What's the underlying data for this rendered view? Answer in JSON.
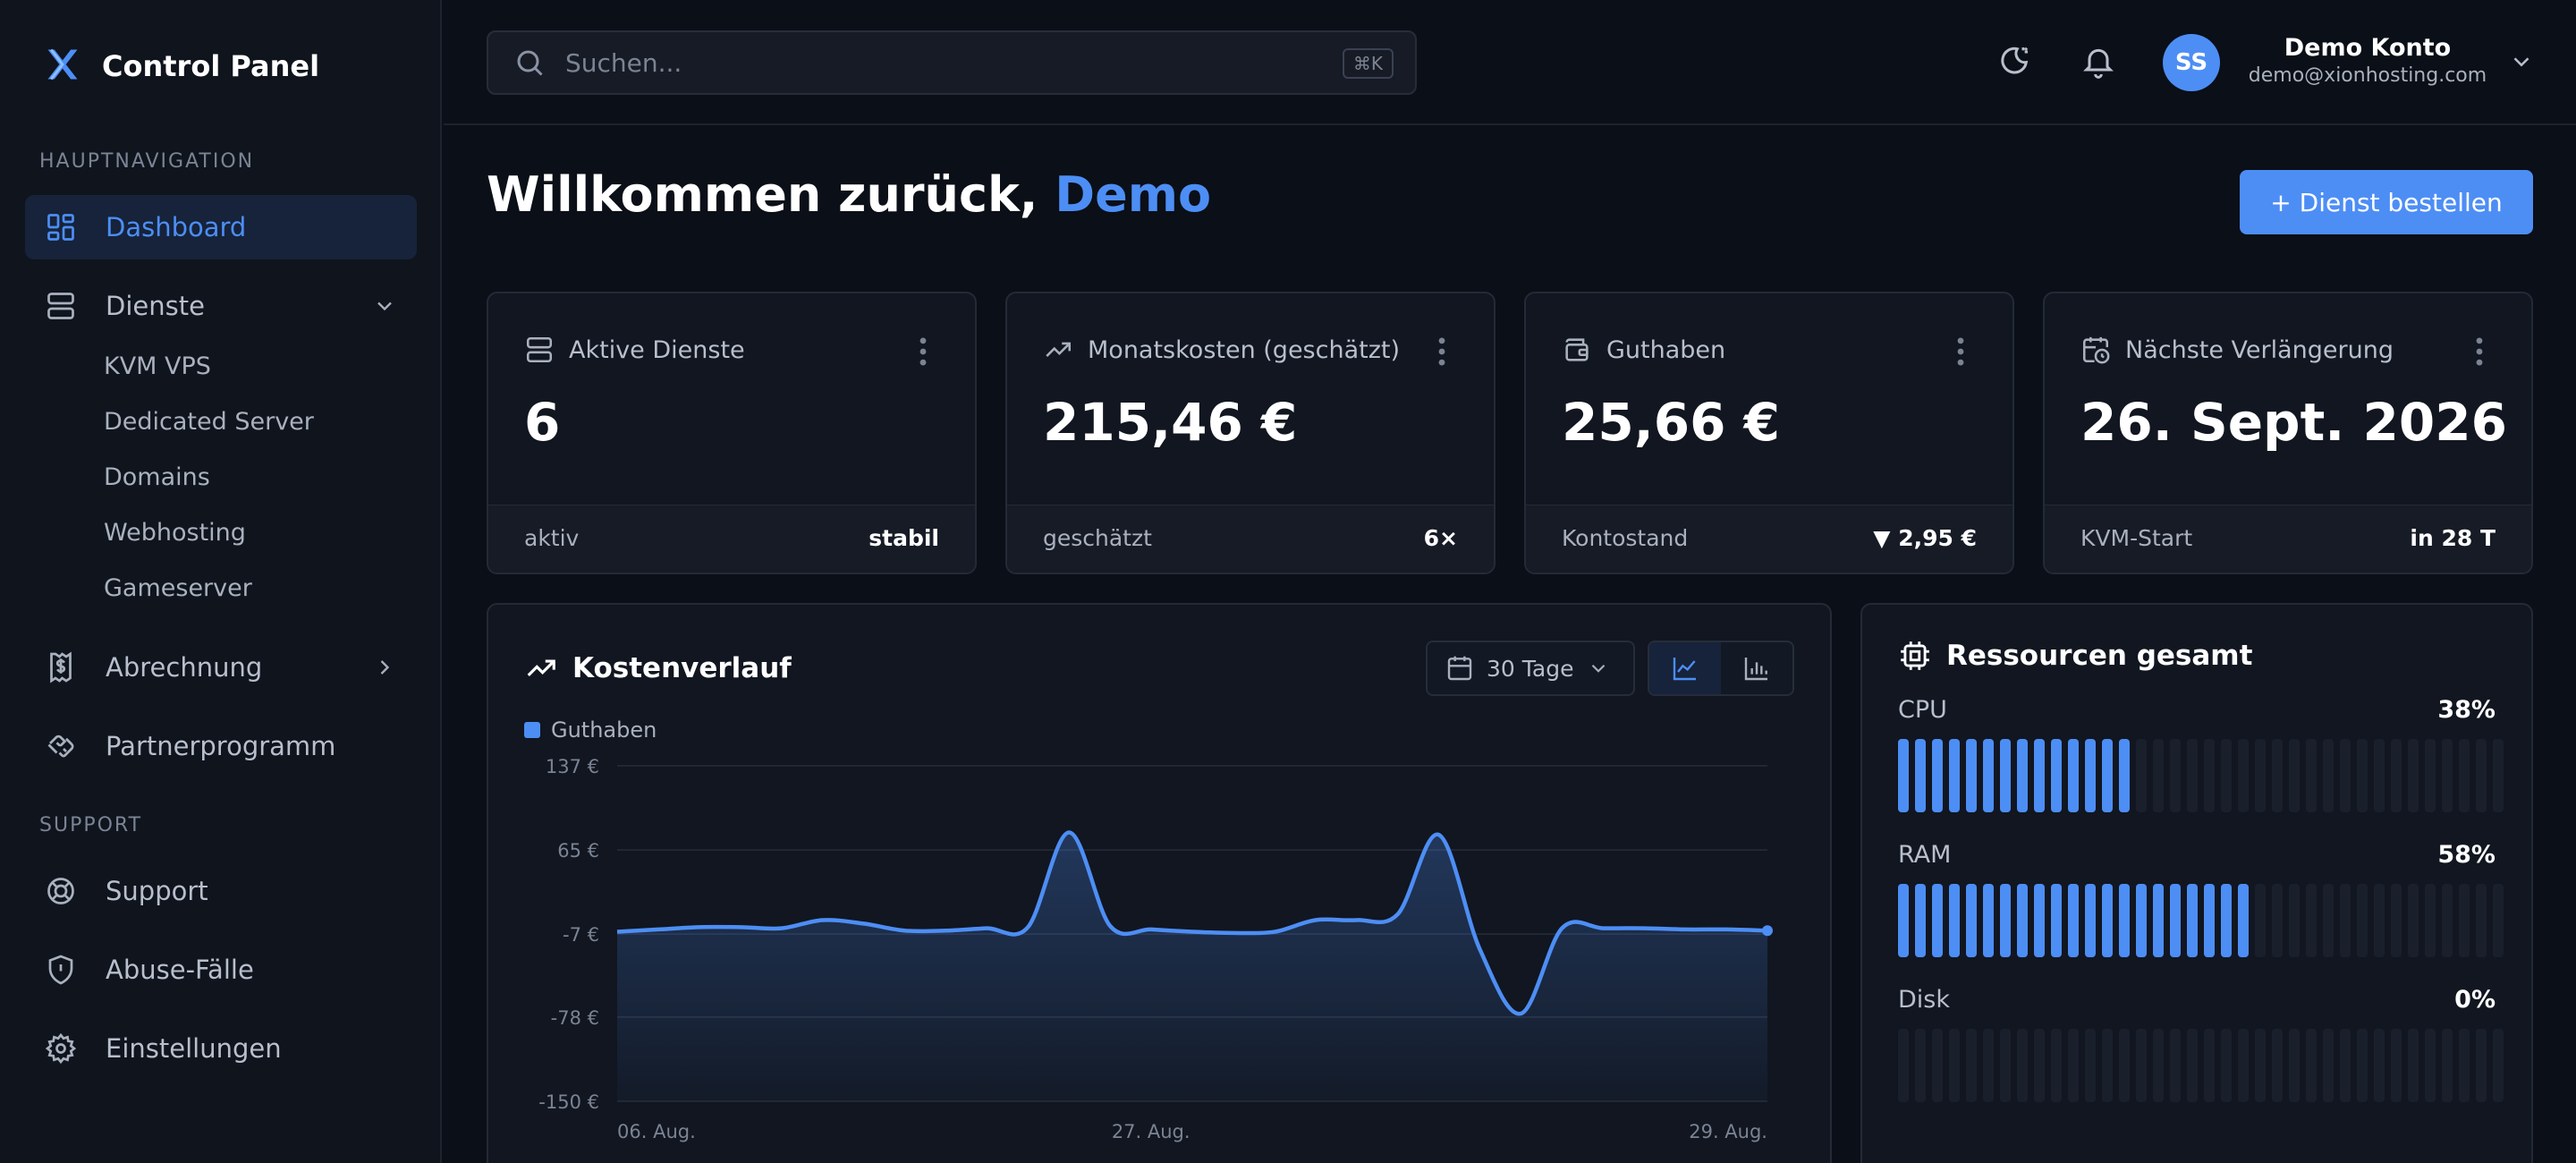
{
  "sidebar": {
    "brand": "Control Panel",
    "section_main": "HAUPTNAVIGATION",
    "section_support": "SUPPORT",
    "items": {
      "dashboard": "Dashboard",
      "dienste": "Dienste",
      "abrechnung": "Abrechnung",
      "partner": "Partnerprogramm",
      "support": "Support",
      "abuse": "Abuse-Fälle",
      "settings": "Einstellungen"
    },
    "sub_items": [
      "KVM VPS",
      "Dedicated Server",
      "Domains",
      "Webhosting",
      "Gameserver"
    ]
  },
  "header": {
    "search_placeholder": "Suchen...",
    "search_shortcut": "⌘K",
    "avatar_initials": "SS",
    "user_name": "Demo Konto",
    "user_email": "demo@xionhosting.com"
  },
  "main": {
    "welcome_prefix": "Willkommen zurück,",
    "welcome_name": "Demo",
    "order_button": "+ Dienst bestellen"
  },
  "cards": [
    {
      "title": "Aktive Dienste",
      "value": "6",
      "foot_left": "aktiv",
      "foot_right": "stabil"
    },
    {
      "title": "Monatskosten (geschätzt)",
      "value": "215,46 €",
      "foot_left": "geschätzt",
      "foot_right": "6×"
    },
    {
      "title": "Guthaben",
      "value": "25,66 €",
      "foot_left": "Kontostand",
      "foot_right": "▼ 2,95 €"
    },
    {
      "title": "Nächste Verlängerung",
      "value": "26. Sept. 2026",
      "foot_left": "KVM-Start",
      "foot_right": "in 28 T"
    }
  ],
  "cost_panel": {
    "title": "Kostenverlauf",
    "range": "30 Tage",
    "active_view": "line"
  },
  "chart_data": {
    "type": "area",
    "title": "Kostenverlauf",
    "y_unit": "€",
    "ylim": [
      -150,
      137
    ],
    "yticks": [
      137,
      65,
      -7,
      -78,
      -150
    ],
    "ytick_labels": [
      "137 €",
      "65 €",
      "-7 €",
      "-78 €",
      "-150 €"
    ],
    "xtick_labels": [
      "06. Aug.",
      "27. Aug.",
      "29. Aug."
    ],
    "grid": true,
    "legend_position": "top-left",
    "series": [
      {
        "name": "Guthaben",
        "color": "#4d8ef5",
        "values": [
          -5,
          -3,
          -1,
          -1,
          -2,
          5,
          2,
          -4,
          -4,
          -2,
          -1,
          80,
          0,
          -3,
          -5,
          -6,
          -5,
          5,
          5,
          10,
          78,
          -20,
          -75,
          -2,
          -2,
          -2,
          -3,
          -3,
          -4
        ]
      }
    ]
  },
  "resources": {
    "title": "Ressourcen gesamt",
    "segments": 36,
    "items": [
      {
        "label": "CPU",
        "percent": 38,
        "pct_text": "38%"
      },
      {
        "label": "RAM",
        "percent": 58,
        "pct_text": "58%"
      },
      {
        "label": "Disk",
        "percent": 0,
        "pct_text": "0%"
      }
    ]
  },
  "colors": {
    "accent": "#4d8ef5",
    "background": "#0b0f17",
    "panel": "#111620"
  }
}
